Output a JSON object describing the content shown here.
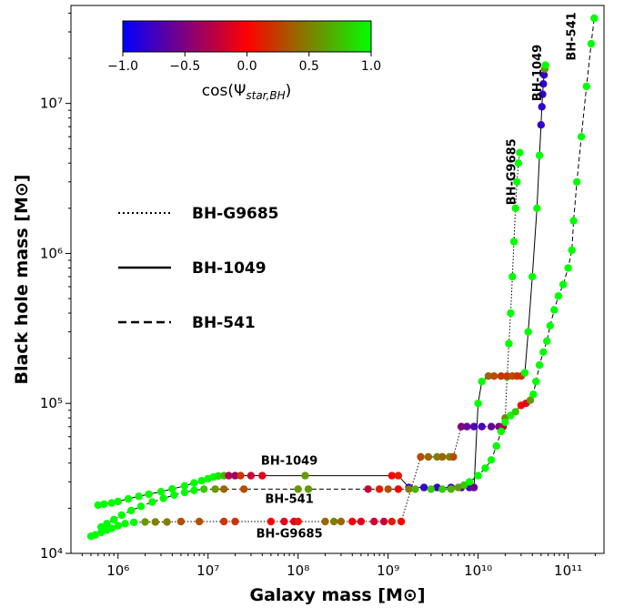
{
  "chart_data": {
    "type": "scatter",
    "xlabel": "Galaxy mass [M⊙]",
    "ylabel": "Black hole mass [M⊙]",
    "xscale": "log",
    "yscale": "log",
    "xlim": [
      300000,
      250000000000
    ],
    "ylim": [
      10000,
      45000000
    ],
    "x_ticks": [
      {
        "value": 1000000,
        "label": "10⁶"
      },
      {
        "value": 10000000,
        "label": "10⁷"
      },
      {
        "value": 100000000,
        "label": "10⁸"
      },
      {
        "value": 1000000000,
        "label": "10⁹"
      },
      {
        "value": 10000000000,
        "label": "10¹⁰"
      },
      {
        "value": 100000000000,
        "label": "10¹¹"
      }
    ],
    "y_ticks": [
      {
        "value": 10000,
        "label": "10⁴"
      },
      {
        "value": 100000,
        "label": "10⁵"
      },
      {
        "value": 1000000,
        "label": "10⁶"
      },
      {
        "value": 10000000,
        "label": "10⁷"
      }
    ],
    "colorbar": {
      "label": "cos(Ψstar,BH)",
      "label_main": "cos(Ψ",
      "label_sub": "star,BH",
      "label_close": ")",
      "min": -1.0,
      "max": 1.0,
      "ticks": [
        "−1.0",
        "−0.5",
        "0.0",
        "0.5",
        "1.0"
      ],
      "colors": [
        "#0000ff",
        "#ff0000",
        "#00ff00"
      ],
      "placement": "top-left"
    },
    "legend": {
      "placement": "center-left",
      "entries": [
        {
          "label": "BH-G9685",
          "style": "dotted"
        },
        {
          "label": "BH-1049",
          "style": "solid"
        },
        {
          "label": "BH-541",
          "style": "dashed"
        }
      ]
    },
    "annotations": [
      {
        "text": "BH-1049",
        "x": 80000000,
        "y": 39000
      },
      {
        "text": "BH-541",
        "x": 80000000,
        "y": 21700
      },
      {
        "text": "BH-G9685",
        "x": 80000000,
        "y": 12800
      },
      {
        "text": "BH-G9685",
        "x": 26000000000,
        "y": 3500000,
        "rotated": true
      },
      {
        "text": "BH-1049",
        "x": 50000000000,
        "y": 16000000,
        "rotated": true
      },
      {
        "text": "BH-541",
        "x": 120000000000,
        "y": 28000000,
        "rotated": true
      }
    ],
    "series": [
      {
        "name": "BH-G9685",
        "line": "dotted",
        "points": [
          [
            500000,
            13000,
            1.0
          ],
          [
            560000,
            13300,
            1.0
          ],
          [
            650000,
            13800,
            1.0
          ],
          [
            750000,
            14300,
            1.0
          ],
          [
            850000,
            14700,
            1.0
          ],
          [
            1000000,
            15300,
            1.0
          ],
          [
            1200000,
            15800,
            1.0
          ],
          [
            1500000,
            16100,
            1.0
          ],
          [
            2000000,
            16200,
            0.6
          ],
          [
            2600000,
            16200,
            0.5
          ],
          [
            3500000,
            16200,
            0.5
          ],
          [
            5000000,
            16300,
            0.3
          ],
          [
            8000000,
            16300,
            0.3
          ],
          [
            15000000,
            16300,
            0.2
          ],
          [
            20000000,
            16300,
            0.2
          ],
          [
            50000000,
            16300,
            0.0
          ],
          [
            70000000,
            16300,
            -0.1
          ],
          [
            90000000,
            16300,
            -0.1
          ],
          [
            100000000,
            16300,
            0.1
          ],
          [
            200000000,
            16300,
            0.4
          ],
          [
            250000000,
            16300,
            0.5
          ],
          [
            300000000,
            16300,
            0.4
          ],
          [
            400000000,
            16300,
            0.0
          ],
          [
            500000000,
            16300,
            -0.1
          ],
          [
            700000000,
            16300,
            -0.2
          ],
          [
            900000000,
            16300,
            -0.2
          ],
          [
            1100000000,
            16300,
            0.1
          ],
          [
            1400000000,
            16300,
            0.0
          ],
          [
            2300000000,
            44000,
            0.3
          ],
          [
            2800000000,
            44000,
            0.4
          ],
          [
            3500000000,
            44000,
            0.5
          ],
          [
            4000000000,
            44000,
            0.4
          ],
          [
            4800000000,
            44000,
            0.5
          ],
          [
            5300000000,
            44000,
            0.3
          ],
          [
            6500000000,
            70000,
            -0.5
          ],
          [
            7500000000,
            70000,
            -0.6
          ],
          [
            9000000000,
            70000,
            -0.7
          ],
          [
            11000000000,
            70000,
            -0.7
          ],
          [
            14000000000,
            70000,
            -0.6
          ],
          [
            17000000000,
            70000,
            -0.5
          ],
          [
            19000000000,
            70000,
            -0.3
          ],
          [
            20000000000,
            80000,
            0.5
          ],
          [
            21000000000,
            150000,
            1.0
          ],
          [
            22000000000,
            250000,
            1.0
          ],
          [
            23000000000,
            400000,
            1.0
          ],
          [
            24000000000,
            700000,
            1.0
          ],
          [
            25000000000,
            1200000,
            1.0
          ],
          [
            26000000000,
            2000000,
            1.0
          ],
          [
            27000000000,
            3000000,
            1.0
          ],
          [
            28000000000,
            4000000,
            1.0
          ],
          [
            29000000000,
            4700000,
            1.0
          ]
        ]
      },
      {
        "name": "BH-1049",
        "line": "solid",
        "points": [
          [
            600000,
            21000,
            1.0
          ],
          [
            700000,
            21300,
            1.0
          ],
          [
            850000,
            21700,
            1.0
          ],
          [
            1000000,
            22200,
            1.0
          ],
          [
            1300000,
            23100,
            1.0
          ],
          [
            1700000,
            24000,
            1.0
          ],
          [
            2200000,
            24800,
            1.0
          ],
          [
            3000000,
            25800,
            1.0
          ],
          [
            4000000,
            26900,
            1.0
          ],
          [
            5500000,
            28200,
            1.0
          ],
          [
            7000000,
            29500,
            1.0
          ],
          [
            8500000,
            30500,
            1.0
          ],
          [
            10000000,
            31500,
            1.0
          ],
          [
            11500000,
            32300,
            1.0
          ],
          [
            13000000,
            32800,
            0.9
          ],
          [
            15000000,
            33000,
            0.7
          ],
          [
            17000000,
            33000,
            -0.3
          ],
          [
            20000000,
            33000,
            -0.4
          ],
          [
            23000000,
            33000,
            0.2
          ],
          [
            30000000,
            33000,
            -0.2
          ],
          [
            40000000,
            33000,
            -0.1
          ],
          [
            120000000,
            33000,
            0.6
          ],
          [
            1100000000,
            33000,
            0.0
          ],
          [
            1300000000,
            33000,
            0.1
          ],
          [
            1700000000,
            27500,
            -0.8
          ],
          [
            2500000000,
            27500,
            -0.8
          ],
          [
            3500000000,
            27500,
            -0.8
          ],
          [
            5000000000,
            27500,
            -0.8
          ],
          [
            6500000000,
            27500,
            -0.8
          ],
          [
            8000000000,
            27500,
            -0.7
          ],
          [
            9000000000,
            27500,
            -0.6
          ],
          [
            10000000000,
            100000,
            1.0
          ],
          [
            11000000000,
            140000,
            1.0
          ],
          [
            13000000000,
            152000,
            0.4
          ],
          [
            15000000000,
            152000,
            0.3
          ],
          [
            18000000000,
            152000,
            0.2
          ],
          [
            21000000000,
            152000,
            0.2
          ],
          [
            24000000000,
            152000,
            0.3
          ],
          [
            27000000000,
            152000,
            0.2
          ],
          [
            30000000000,
            152000,
            0.2
          ],
          [
            33000000000,
            160000,
            1.0
          ],
          [
            36000000000,
            300000,
            1.0
          ],
          [
            40000000000,
            700000,
            1.0
          ],
          [
            45000000000,
            2000000,
            1.0
          ],
          [
            48000000000,
            4500000,
            1.0
          ],
          [
            50000000000,
            7200000,
            -0.8
          ],
          [
            51000000000,
            9500000,
            -0.8
          ],
          [
            52000000000,
            11500000,
            -0.8
          ],
          [
            53000000000,
            13500000,
            -0.8
          ],
          [
            54000000000,
            15500000,
            -0.8
          ],
          [
            55000000000,
            17000000,
            0.6
          ],
          [
            56000000000,
            18000000,
            1.0
          ]
        ]
      },
      {
        "name": "BH-541",
        "line": "dashed",
        "points": [
          [
            650000,
            15000,
            1.0
          ],
          [
            750000,
            15800,
            1.0
          ],
          [
            900000,
            16800,
            1.0
          ],
          [
            1100000,
            18000,
            1.0
          ],
          [
            1400000,
            19300,
            1.0
          ],
          [
            1800000,
            20600,
            1.0
          ],
          [
            2400000,
            22000,
            1.0
          ],
          [
            3200000,
            23300,
            1.0
          ],
          [
            4200000,
            24500,
            1.0
          ],
          [
            5500000,
            25500,
            1.0
          ],
          [
            7000000,
            26300,
            1.0
          ],
          [
            9000000,
            26800,
            0.8
          ],
          [
            12000000,
            26800,
            0.6
          ],
          [
            15000000,
            26800,
            0.4
          ],
          [
            25000000,
            26800,
            0.3
          ],
          [
            100000000,
            26800,
            0.6
          ],
          [
            130000000,
            26800,
            0.6
          ],
          [
            600000000,
            26800,
            -0.2
          ],
          [
            800000000,
            26800,
            0.1
          ],
          [
            1000000000,
            26800,
            0.3
          ],
          [
            1300000000,
            26800,
            0.0
          ],
          [
            1700000000,
            26800,
            0.5
          ],
          [
            2000000000,
            26800,
            0.7
          ],
          [
            3000000000,
            26800,
            0.8
          ],
          [
            4000000000,
            26800,
            0.8
          ],
          [
            5000000000,
            26800,
            0.7
          ],
          [
            6000000000,
            27500,
            0.6
          ],
          [
            7000000000,
            28500,
            0.8
          ],
          [
            8000000000,
            30000,
            1.0
          ],
          [
            10000000000,
            33000,
            1.0
          ],
          [
            12000000000,
            37000,
            1.0
          ],
          [
            14000000000,
            42000,
            1.0
          ],
          [
            16000000000,
            52000,
            1.0
          ],
          [
            18000000000,
            65000,
            1.0
          ],
          [
            20000000000,
            75000,
            1.0
          ],
          [
            23000000000,
            83000,
            1.0
          ],
          [
            26000000000,
            88000,
            0.8
          ],
          [
            30000000000,
            97000,
            0.0
          ],
          [
            34000000000,
            100000,
            -0.1
          ],
          [
            38000000000,
            105000,
            0.6
          ],
          [
            41000000000,
            115000,
            1.0
          ],
          [
            44000000000,
            140000,
            1.0
          ],
          [
            48000000000,
            180000,
            1.0
          ],
          [
            53000000000,
            220000,
            1.0
          ],
          [
            58000000000,
            260000,
            1.0
          ],
          [
            63000000000,
            330000,
            1.0
          ],
          [
            70000000000,
            420000,
            1.0
          ],
          [
            78000000000,
            520000,
            1.0
          ],
          [
            88000000000,
            620000,
            1.0
          ],
          [
            100000000000,
            800000,
            1.0
          ],
          [
            110000000000,
            1050000,
            1.0
          ],
          [
            115000000000,
            1650000,
            1.0
          ],
          [
            125000000000,
            3000000,
            1.0
          ],
          [
            140000000000,
            6000000,
            1.0
          ],
          [
            160000000000,
            13000000,
            1.0
          ],
          [
            180000000000,
            25000000,
            1.0
          ],
          [
            195000000000,
            37000000,
            1.0
          ]
        ]
      }
    ]
  }
}
